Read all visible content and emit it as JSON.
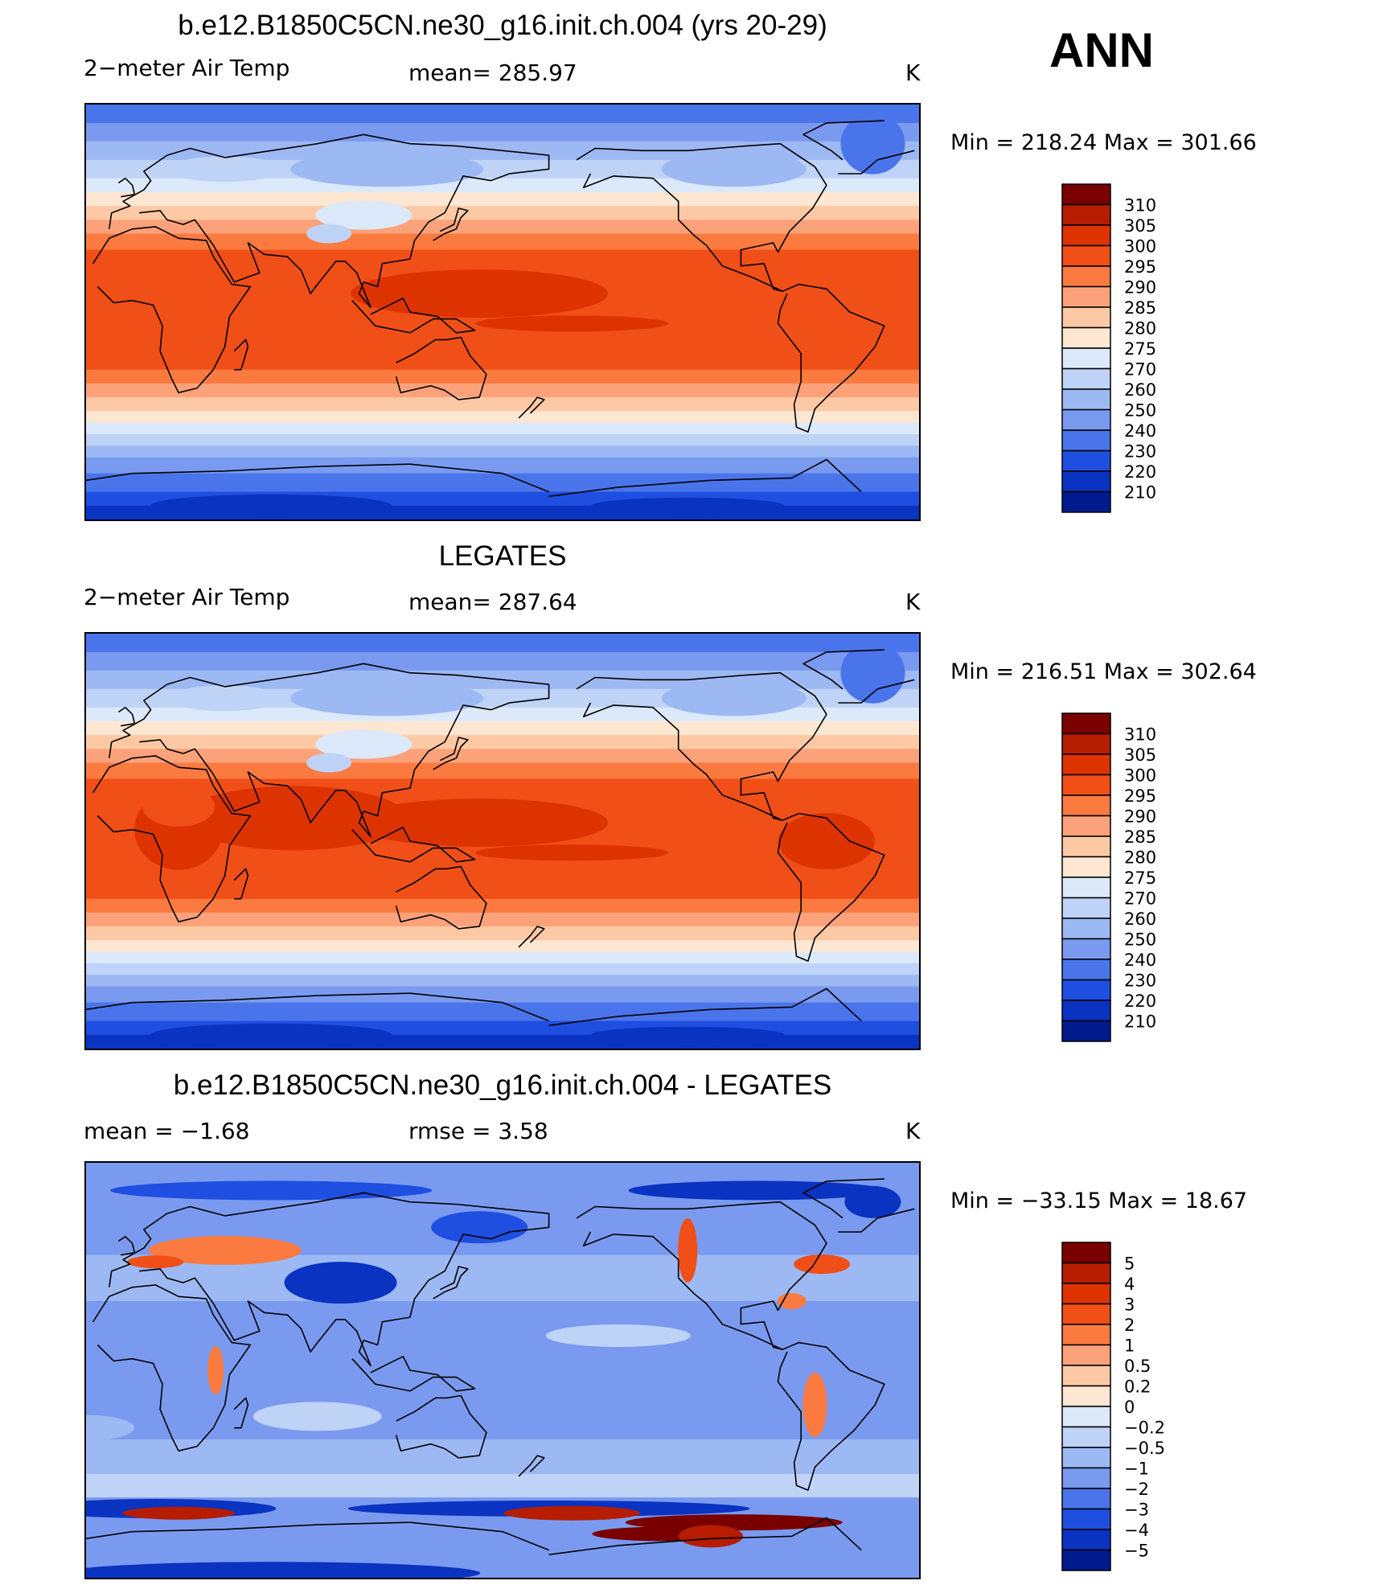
{
  "annotation": "ANN",
  "panels": [
    {
      "id": "model",
      "title": "b.e12.B1850C5CN.ne30_g16.init.ch.004 (yrs 20-29)",
      "left_label": "2−meter Air Temp",
      "center_label": "mean=  285.97",
      "units": "K",
      "minmax": "Min  =  218.24  Max  =  301.66",
      "field": "model"
    },
    {
      "id": "obs",
      "title": "LEGATES",
      "left_label": "2−meter Air Temp",
      "center_label": "mean=  287.64",
      "units": "K",
      "minmax": "Min  =  216.51  Max  =  302.64",
      "field": "obs"
    },
    {
      "id": "diff",
      "title": "b.e12.B1850C5CN.ne30_g16.init.ch.004 - LEGATES",
      "left_label": "mean  =    −1.68",
      "center_label": "rmse  =     3.58",
      "units": "K",
      "minmax": "Min  =  −33.15  Max  =    18.67",
      "field": "diff"
    }
  ],
  "chart_data": [
    {
      "type": "heatmap",
      "name": "model",
      "levels": [
        "310",
        "305",
        "300",
        "295",
        "290",
        "285",
        "280",
        "275",
        "270",
        "260",
        "250",
        "240",
        "230",
        "220",
        "210"
      ],
      "colors": [
        "#7a0000",
        "#b51c00",
        "#dd3300",
        "#f04f17",
        "#fa7a40",
        "#fca27a",
        "#fdc9a5",
        "#fde6d2",
        "#dbe9fa",
        "#bed3f6",
        "#9db9f4",
        "#7a9af0",
        "#4a74ea",
        "#1f4fe0",
        "#0a33c2",
        "#001b8e"
      ],
      "ylim": [
        -90,
        90
      ],
      "xlim": [
        0,
        360
      ]
    },
    {
      "type": "heatmap",
      "name": "obs",
      "levels": [
        "310",
        "305",
        "300",
        "295",
        "290",
        "285",
        "280",
        "275",
        "270",
        "260",
        "250",
        "240",
        "230",
        "220",
        "210"
      ],
      "colors": [
        "#7a0000",
        "#b51c00",
        "#dd3300",
        "#f04f17",
        "#fa7a40",
        "#fca27a",
        "#fdc9a5",
        "#fde6d2",
        "#dbe9fa",
        "#bed3f6",
        "#9db9f4",
        "#7a9af0",
        "#4a74ea",
        "#1f4fe0",
        "#0a33c2",
        "#001b8e"
      ],
      "ylim": [
        -90,
        90
      ],
      "xlim": [
        0,
        360
      ]
    },
    {
      "type": "heatmap",
      "name": "diff",
      "levels": [
        "5",
        "4",
        "3",
        "2",
        "1",
        "0.5",
        "0.2",
        "0",
        "−0.2",
        "−0.5",
        "−1",
        "−2",
        "−3",
        "−4",
        "−5"
      ],
      "colors": [
        "#7a0000",
        "#b51c00",
        "#dd3300",
        "#f04f17",
        "#fa7a40",
        "#fca27a",
        "#fdc9a5",
        "#fde6d2",
        "#dbe9fa",
        "#bed3f6",
        "#9db9f4",
        "#7a9af0",
        "#4a74ea",
        "#1f4fe0",
        "#0a33c2",
        "#001b8e"
      ],
      "ylim": [
        -90,
        90
      ],
      "xlim": [
        0,
        360
      ]
    }
  ]
}
